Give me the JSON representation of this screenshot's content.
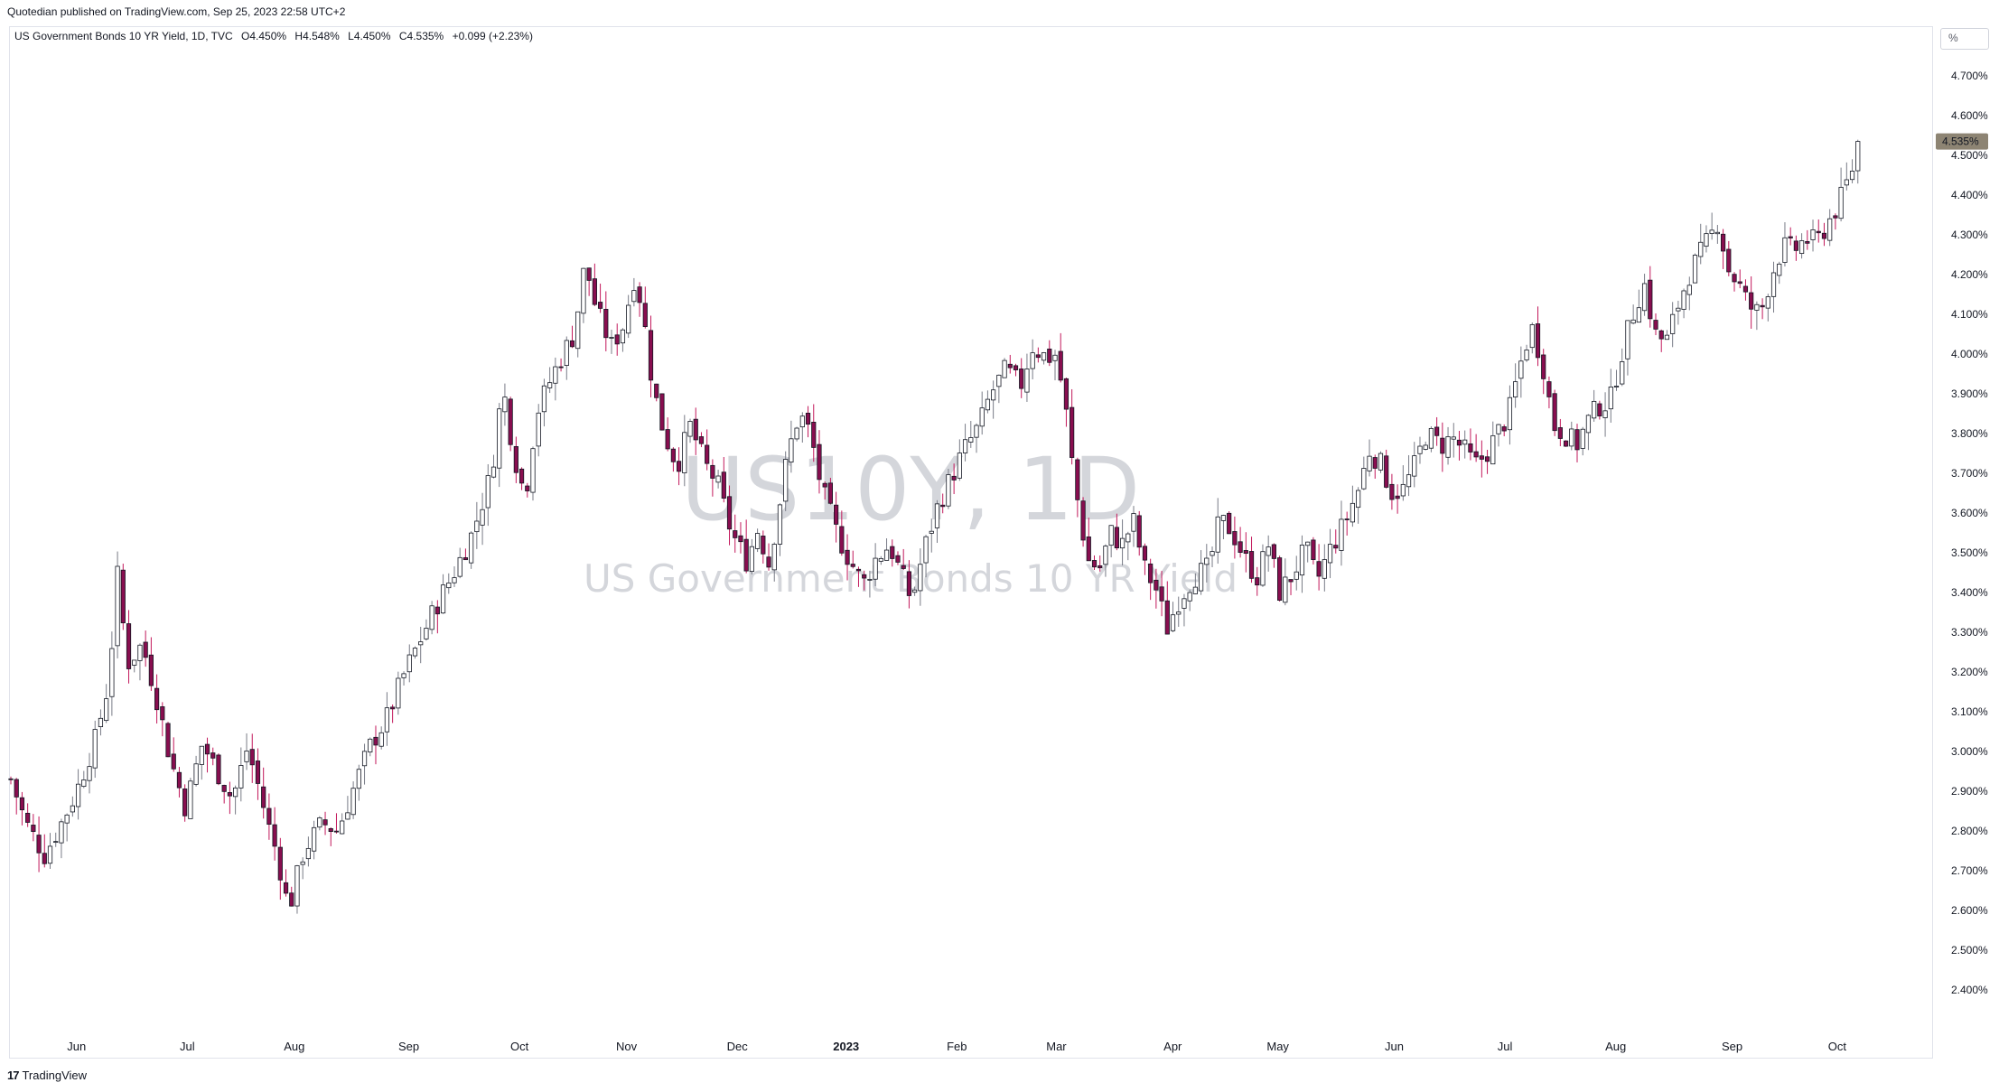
{
  "header": {
    "published": "Quotedian published on TradingView.com, Sep 25, 2023 22:58 UTC+2"
  },
  "legend": {
    "title": "US Government Bonds 10 YR Yield, 1D, TVC",
    "open": "O4.450%",
    "high": "H4.548%",
    "low": "L4.450%",
    "close": "C4.535%",
    "change": "+0.099 (+2.23%)"
  },
  "scale_button": "%",
  "watermark": {
    "symbol": "US10Y, 1D",
    "name": "US Government Bonds 10 YR Yield"
  },
  "footer": {
    "brand": "TradingView",
    "logo_glyph": "17"
  },
  "colors": {
    "up_body": "#ffffff",
    "down_body": "#880e4f",
    "wick_up": "#787b86",
    "wick_down": "#c2185b",
    "outline": "#131722",
    "last_price_bg": "#8d8473"
  },
  "chart_data": {
    "type": "candlestick",
    "symbol": "US10Y",
    "interval": "1D",
    "ylabel": "%",
    "ylim": [
      2.38,
      4.72
    ],
    "y_ticks": [
      "4.700%",
      "4.600%",
      "4.500%",
      "4.400%",
      "4.300%",
      "4.200%",
      "4.100%",
      "4.000%",
      "3.900%",
      "3.800%",
      "3.700%",
      "3.600%",
      "3.500%",
      "3.400%",
      "3.300%",
      "3.200%",
      "3.100%",
      "3.000%",
      "2.900%",
      "2.800%",
      "2.700%",
      "2.600%",
      "2.500%",
      "2.400%"
    ],
    "y_tick_values": [
      4.7,
      4.6,
      4.5,
      4.4,
      4.3,
      4.2,
      4.1,
      4.0,
      3.9,
      3.8,
      3.7,
      3.6,
      3.5,
      3.4,
      3.3,
      3.2,
      3.1,
      3.0,
      2.9,
      2.8,
      2.7,
      2.6,
      2.5,
      2.4
    ],
    "x_ticks": [
      {
        "label": "Jun",
        "pos": 0.035
      },
      {
        "label": "Jul",
        "pos": 0.094
      },
      {
        "label": "Aug",
        "pos": 0.151
      },
      {
        "label": "Sep",
        "pos": 0.212
      },
      {
        "label": "Oct",
        "pos": 0.271
      },
      {
        "label": "Nov",
        "pos": 0.328
      },
      {
        "label": "Dec",
        "pos": 0.387
      },
      {
        "label": "2023",
        "pos": 0.445,
        "bold": true
      },
      {
        "label": "Feb",
        "pos": 0.504
      },
      {
        "label": "Mar",
        "pos": 0.557
      },
      {
        "label": "Apr",
        "pos": 0.619
      },
      {
        "label": "May",
        "pos": 0.675
      },
      {
        "label": "Jun",
        "pos": 0.737
      },
      {
        "label": "Jul",
        "pos": 0.796
      },
      {
        "label": "Aug",
        "pos": 0.855
      },
      {
        "label": "Sep",
        "pos": 0.917
      },
      {
        "label": "Oct",
        "pos": 0.973
      }
    ],
    "last_price": 4.535,
    "last_price_label": "4.535%",
    "series": [
      {
        "name": "US10Y",
        "keypoints": [
          [
            0.0,
            2.93
          ],
          [
            0.008,
            2.82
          ],
          [
            0.018,
            2.74
          ],
          [
            0.028,
            2.83
          ],
          [
            0.035,
            2.9
          ],
          [
            0.045,
            3.03
          ],
          [
            0.052,
            3.17
          ],
          [
            0.057,
            3.45
          ],
          [
            0.062,
            3.22
          ],
          [
            0.07,
            3.27
          ],
          [
            0.077,
            3.15
          ],
          [
            0.085,
            2.98
          ],
          [
            0.093,
            2.86
          ],
          [
            0.102,
            3.02
          ],
          [
            0.11,
            2.95
          ],
          [
            0.118,
            2.88
          ],
          [
            0.126,
            3.01
          ],
          [
            0.132,
            2.91
          ],
          [
            0.138,
            2.8
          ],
          [
            0.142,
            2.74
          ],
          [
            0.148,
            2.6
          ],
          [
            0.156,
            2.75
          ],
          [
            0.166,
            2.82
          ],
          [
            0.174,
            2.8
          ],
          [
            0.182,
            2.9
          ],
          [
            0.192,
            3.02
          ],
          [
            0.2,
            3.08
          ],
          [
            0.21,
            3.2
          ],
          [
            0.22,
            3.3
          ],
          [
            0.228,
            3.38
          ],
          [
            0.236,
            3.45
          ],
          [
            0.246,
            3.55
          ],
          [
            0.256,
            3.7
          ],
          [
            0.262,
            3.92
          ],
          [
            0.268,
            3.75
          ],
          [
            0.274,
            3.64
          ],
          [
            0.28,
            3.85
          ],
          [
            0.288,
            3.94
          ],
          [
            0.294,
            4.0
          ],
          [
            0.3,
            4.05
          ],
          [
            0.306,
            4.23
          ],
          [
            0.312,
            4.11
          ],
          [
            0.32,
            4.02
          ],
          [
            0.326,
            4.07
          ],
          [
            0.332,
            4.19
          ],
          [
            0.336,
            4.13
          ],
          [
            0.342,
            3.92
          ],
          [
            0.348,
            3.8
          ],
          [
            0.355,
            3.72
          ],
          [
            0.362,
            3.82
          ],
          [
            0.37,
            3.72
          ],
          [
            0.376,
            3.68
          ],
          [
            0.384,
            3.55
          ],
          [
            0.392,
            3.48
          ],
          [
            0.398,
            3.56
          ],
          [
            0.404,
            3.47
          ],
          [
            0.414,
            3.75
          ],
          [
            0.42,
            3.85
          ],
          [
            0.426,
            3.8
          ],
          [
            0.432,
            3.66
          ],
          [
            0.44,
            3.55
          ],
          [
            0.446,
            3.49
          ],
          [
            0.454,
            3.42
          ],
          [
            0.46,
            3.48
          ],
          [
            0.468,
            3.52
          ],
          [
            0.474,
            3.45
          ],
          [
            0.48,
            3.38
          ],
          [
            0.486,
            3.5
          ],
          [
            0.494,
            3.62
          ],
          [
            0.5,
            3.68
          ],
          [
            0.508,
            3.76
          ],
          [
            0.516,
            3.82
          ],
          [
            0.522,
            3.9
          ],
          [
            0.53,
            3.96
          ],
          [
            0.538,
            3.92
          ],
          [
            0.544,
            4.02
          ],
          [
            0.552,
            3.99
          ],
          [
            0.557,
            4.0
          ],
          [
            0.562,
            3.86
          ],
          [
            0.566,
            3.7
          ],
          [
            0.57,
            3.58
          ],
          [
            0.574,
            3.48
          ],
          [
            0.58,
            3.46
          ],
          [
            0.586,
            3.55
          ],
          [
            0.592,
            3.52
          ],
          [
            0.598,
            3.58
          ],
          [
            0.604,
            3.46
          ],
          [
            0.61,
            3.41
          ],
          [
            0.616,
            3.31
          ],
          [
            0.622,
            3.38
          ],
          [
            0.63,
            3.44
          ],
          [
            0.638,
            3.46
          ],
          [
            0.644,
            3.58
          ],
          [
            0.65,
            3.56
          ],
          [
            0.658,
            3.48
          ],
          [
            0.664,
            3.44
          ],
          [
            0.67,
            3.52
          ],
          [
            0.676,
            3.4
          ],
          [
            0.682,
            3.44
          ],
          [
            0.69,
            3.51
          ],
          [
            0.696,
            3.43
          ],
          [
            0.702,
            3.5
          ],
          [
            0.71,
            3.57
          ],
          [
            0.718,
            3.66
          ],
          [
            0.724,
            3.76
          ],
          [
            0.73,
            3.72
          ],
          [
            0.736,
            3.65
          ],
          [
            0.742,
            3.66
          ],
          [
            0.748,
            3.72
          ],
          [
            0.754,
            3.8
          ],
          [
            0.762,
            3.77
          ],
          [
            0.768,
            3.79
          ],
          [
            0.774,
            3.76
          ],
          [
            0.78,
            3.72
          ],
          [
            0.786,
            3.75
          ],
          [
            0.792,
            3.8
          ],
          [
            0.798,
            3.85
          ],
          [
            0.804,
            3.97
          ],
          [
            0.81,
            4.07
          ],
          [
            0.816,
            3.98
          ],
          [
            0.822,
            3.82
          ],
          [
            0.828,
            3.8
          ],
          [
            0.834,
            3.77
          ],
          [
            0.84,
            3.83
          ],
          [
            0.846,
            3.87
          ],
          [
            0.852,
            3.88
          ],
          [
            0.858,
            4.0
          ],
          [
            0.864,
            4.1
          ],
          [
            0.87,
            4.18
          ],
          [
            0.876,
            4.05
          ],
          [
            0.882,
            4.03
          ],
          [
            0.888,
            4.12
          ],
          [
            0.894,
            4.2
          ],
          [
            0.9,
            4.25
          ],
          [
            0.906,
            4.3
          ],
          [
            0.91,
            4.34
          ],
          [
            0.914,
            4.22
          ],
          [
            0.92,
            4.18
          ],
          [
            0.926,
            4.12
          ],
          [
            0.932,
            4.1
          ],
          [
            0.938,
            4.2
          ],
          [
            0.944,
            4.27
          ],
          [
            0.95,
            4.26
          ],
          [
            0.956,
            4.29
          ],
          [
            0.962,
            4.28
          ],
          [
            0.968,
            4.33
          ],
          [
            0.974,
            4.38
          ],
          [
            0.98,
            4.45
          ],
          [
            0.984,
            4.52
          ]
        ]
      }
    ]
  }
}
